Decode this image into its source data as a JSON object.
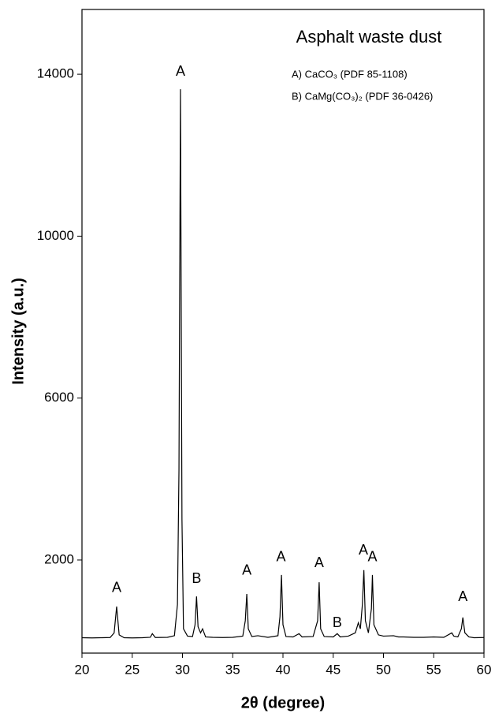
{
  "chart_data": {
    "type": "line",
    "title": "Asphalt waste dust",
    "legend_lines": [
      "A) CaCO₃  (PDF 85-1108)",
      "B) CaMg(CO₃)₂  (PDF 36-0426)"
    ],
    "x_label": "2θ (degree)",
    "y_label": "Intensity (a.u.)",
    "xlim": [
      20,
      60
    ],
    "xticks": [
      20,
      25,
      30,
      35,
      40,
      45,
      50,
      55,
      60
    ],
    "ylim": [
      -300,
      15600
    ],
    "yticks": [
      2000,
      6000,
      10000,
      14000
    ],
    "series": [
      {
        "name": "Asphalt waste dust",
        "color": "#000000",
        "x": [
          20,
          21,
          22,
          22.8,
          23.2,
          23.45,
          23.7,
          24.2,
          25,
          26,
          26.8,
          27.0,
          27.3,
          28.5,
          29.2,
          29.5,
          29.65,
          29.8,
          29.95,
          30.1,
          30.5,
          31.0,
          31.25,
          31.4,
          31.55,
          31.8,
          32.0,
          32.3,
          33,
          34,
          35,
          36.0,
          36.25,
          36.4,
          36.55,
          36.9,
          37.5,
          38.5,
          39.5,
          39.7,
          39.85,
          40.0,
          40.3,
          41,
          41.6,
          41.9,
          43,
          43.45,
          43.6,
          43.75,
          44.1,
          45,
          45.4,
          45.7,
          46.5,
          47.2,
          47.5,
          47.7,
          47.9,
          48.05,
          48.2,
          48.5,
          48.8,
          48.9,
          49.05,
          49.5,
          50,
          51,
          51.5,
          52,
          53,
          54,
          55,
          56,
          56.8,
          57,
          57.4,
          57.75,
          57.9,
          58.1,
          58.5,
          59,
          60
        ],
        "values": [
          80,
          75,
          80,
          85,
          200,
          850,
          150,
          80,
          75,
          80,
          90,
          180,
          85,
          90,
          130,
          900,
          4200,
          13630,
          3000,
          300,
          120,
          110,
          400,
          1100,
          350,
          200,
          300,
          100,
          90,
          85,
          90,
          120,
          500,
          1160,
          300,
          110,
          130,
          90,
          130,
          600,
          1630,
          400,
          110,
          100,
          180,
          100,
          110,
          500,
          1450,
          300,
          110,
          100,
          180,
          100,
          120,
          200,
          450,
          300,
          900,
          1750,
          500,
          200,
          800,
          1630,
          400,
          150,
          120,
          130,
          100,
          100,
          90,
          90,
          100,
          90,
          200,
          120,
          100,
          300,
          580,
          200,
          100,
          80,
          85
        ]
      }
    ],
    "annotations": [
      {
        "text": "A",
        "x": 23.45,
        "y": 1300
      },
      {
        "text": "A",
        "x": 29.8,
        "y": 14060
      },
      {
        "text": "B",
        "x": 31.4,
        "y": 1530
      },
      {
        "text": "A",
        "x": 36.4,
        "y": 1730
      },
      {
        "text": "A",
        "x": 39.8,
        "y": 2060
      },
      {
        "text": "A",
        "x": 43.6,
        "y": 1920
      },
      {
        "text": "B",
        "x": 45.4,
        "y": 440
      },
      {
        "text": "A",
        "x": 48.0,
        "y": 2230
      },
      {
        "text": "A",
        "x": 48.9,
        "y": 2060
      },
      {
        "text": "A",
        "x": 57.9,
        "y": 1080
      }
    ]
  }
}
